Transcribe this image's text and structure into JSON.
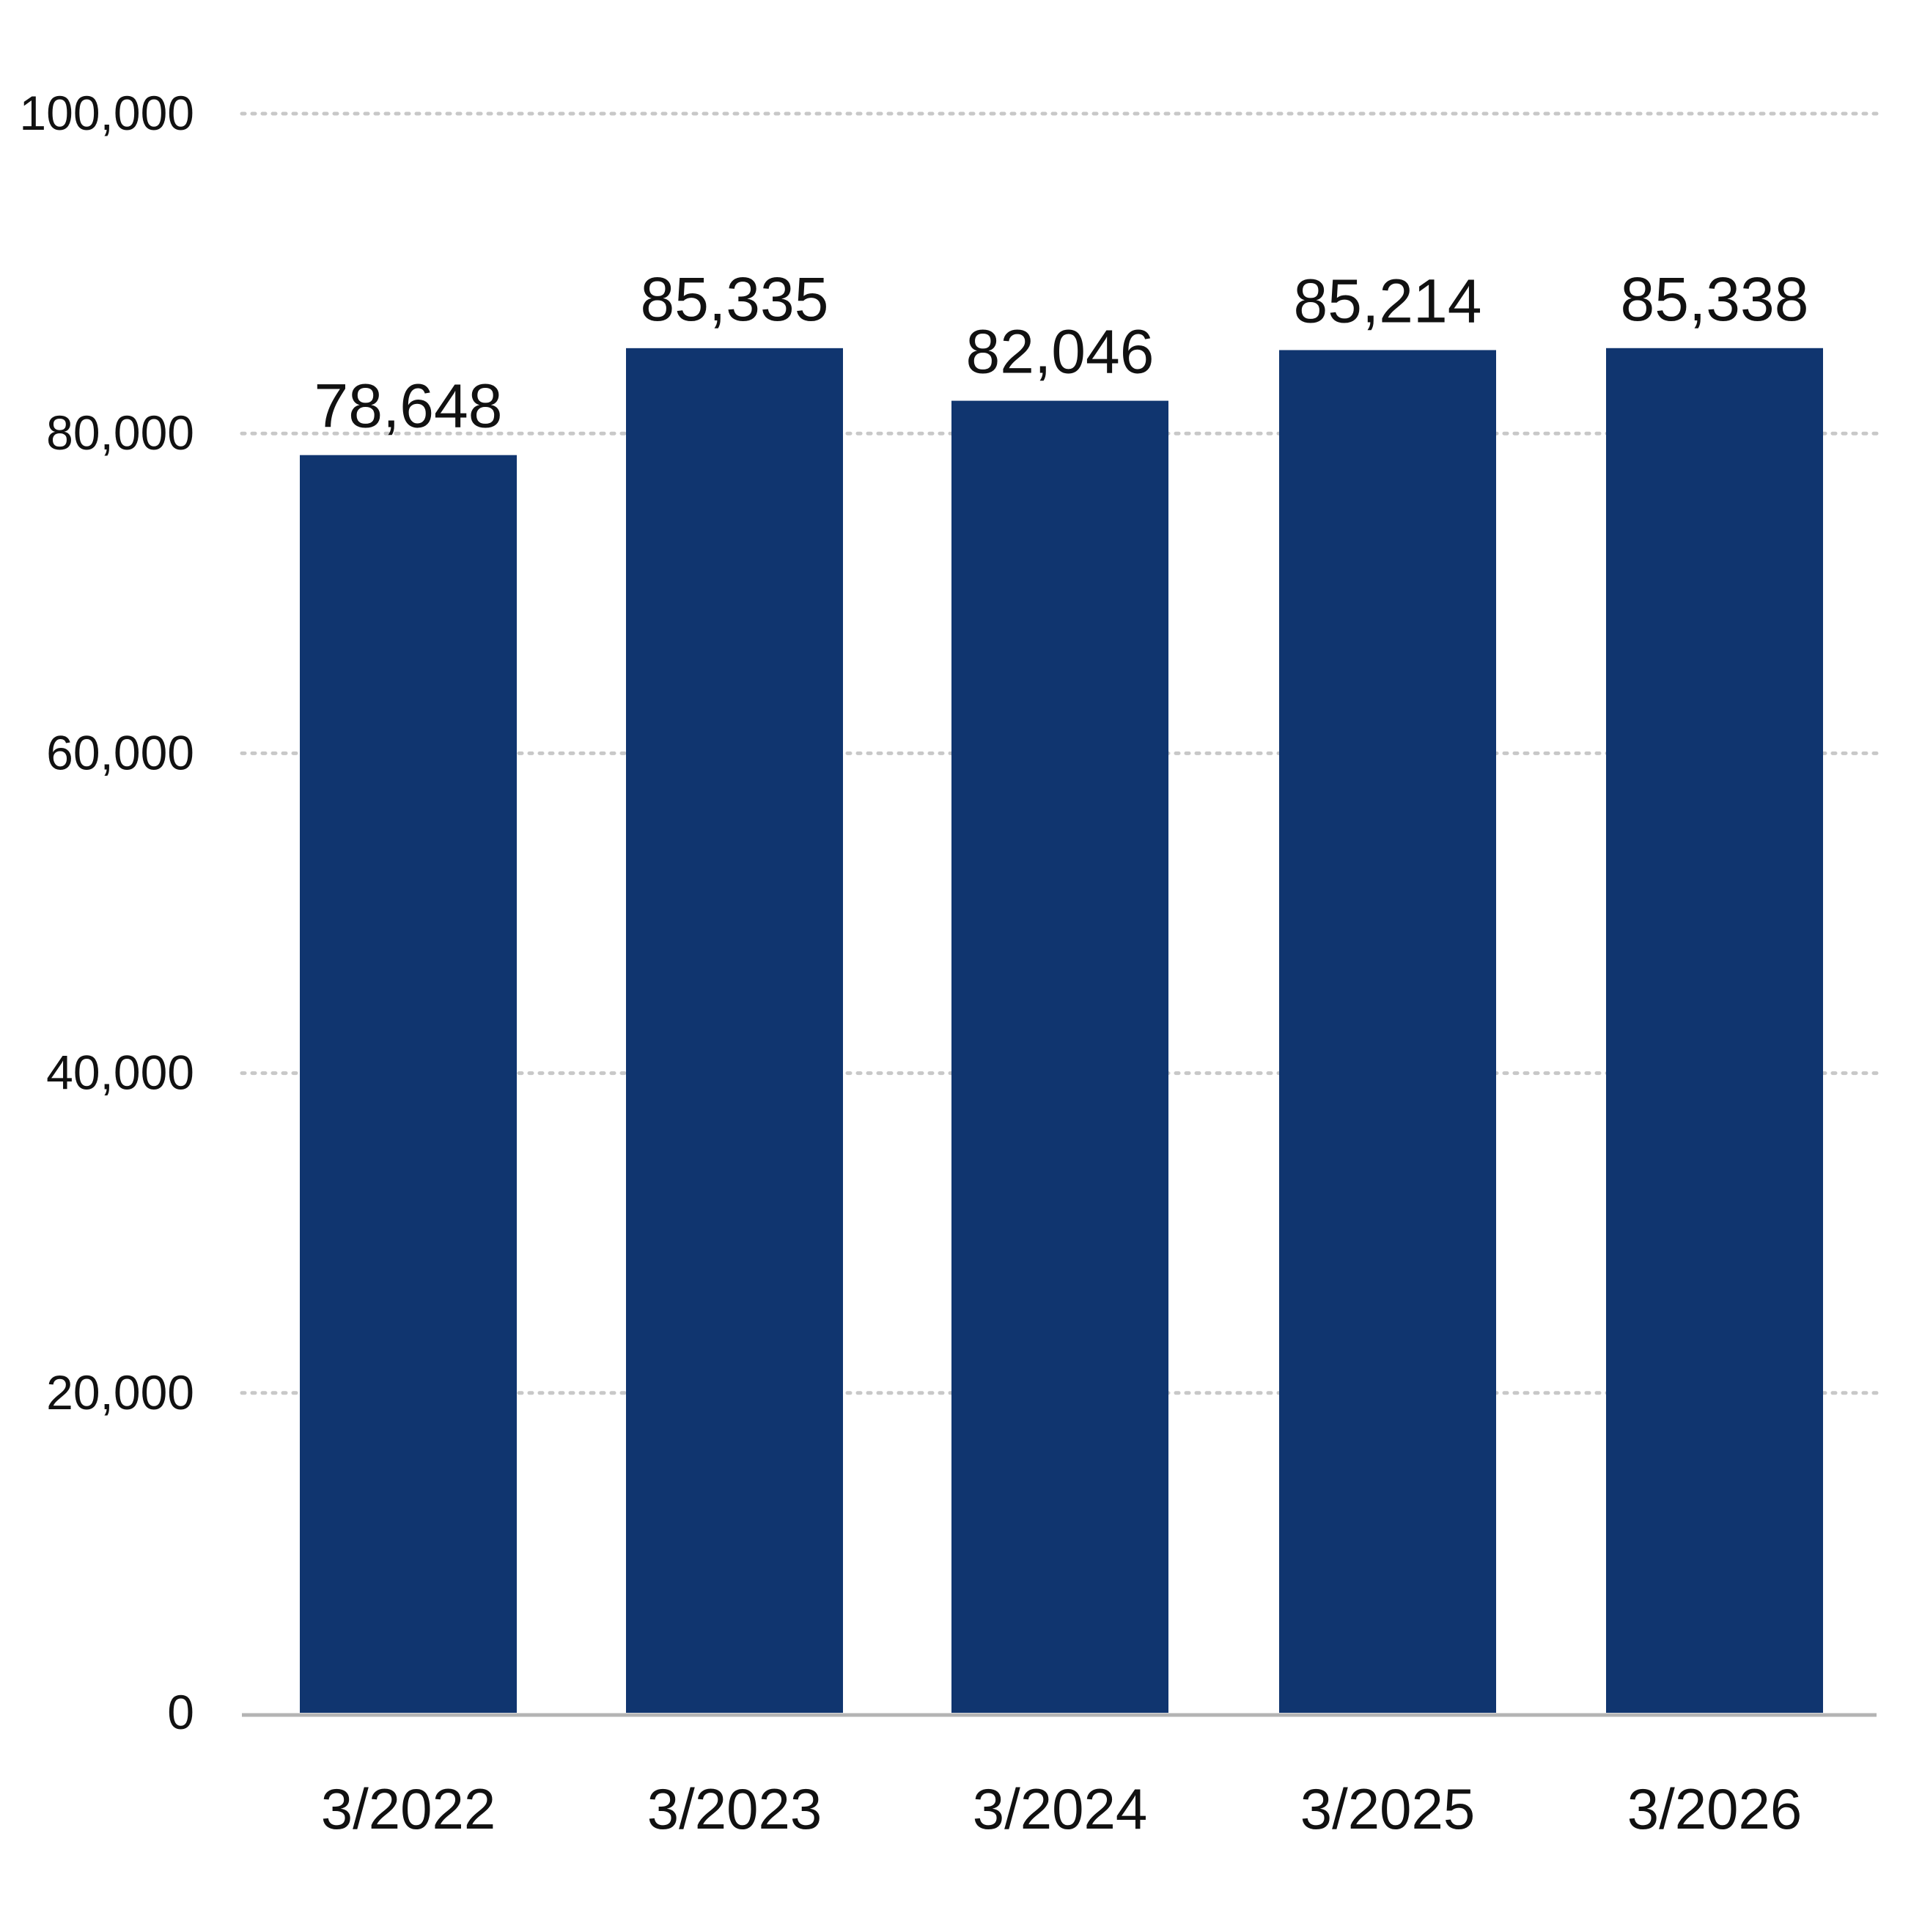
{
  "chart_data": {
    "type": "bar",
    "categories": [
      "3/2022",
      "3/2023",
      "3/2024",
      "3/2025",
      "3/2026"
    ],
    "values": [
      78648,
      85335,
      82046,
      85214,
      85338
    ],
    "value_labels": [
      "78,648",
      "85,335",
      "82,046",
      "85,214",
      "85,338"
    ],
    "ylim": [
      0,
      100000
    ],
    "yticks": [
      0,
      20000,
      40000,
      60000,
      80000,
      100000
    ],
    "ytick_labels": [
      "0",
      "20,000",
      "40,000",
      "60,000",
      "80,000",
      "100,000"
    ],
    "grid": "horizontal-dotted",
    "legend": "none",
    "colors": {
      "bar": "#10356f",
      "grid": "#c8c8c8",
      "axis": "#b4b4b4",
      "text": "#111111"
    }
  }
}
